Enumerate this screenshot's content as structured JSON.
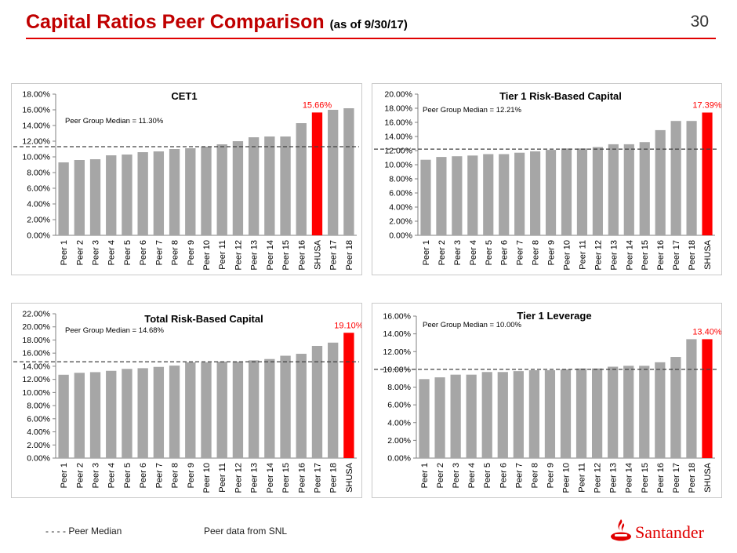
{
  "header": {
    "title": "Capital Ratios Peer Comparison",
    "subtitle": "(as of 9/30/17)",
    "page_number": "30"
  },
  "footer": {
    "legend_text": "- - - - Peer Median",
    "source": "Peer data from SNL",
    "logo_text": "Santander"
  },
  "colors": {
    "peer_bar": "#a6a6a6",
    "highlight_bar": "#ff0000",
    "highlight_label": "#ff0000",
    "title_red": "#c00000",
    "median_line": "#404040"
  },
  "chart_data": [
    {
      "type": "bar",
      "title": "CET1",
      "median_label": "Peer Group Median = 11.30%",
      "median": 11.3,
      "highlight_category": "SHUSA",
      "highlight_label": "15.66%",
      "ylim": [
        0,
        18
      ],
      "ystep": 2,
      "categories": [
        "Peer 1",
        "Peer 2",
        "Peer 3",
        "Peer 4",
        "Peer 5",
        "Peer 6",
        "Peer 7",
        "Peer 8",
        "Peer 9",
        "Peer 10",
        "Peer 11",
        "Peer 12",
        "Peer 13",
        "Peer 14",
        "Peer 15",
        "Peer 16",
        "SHUSA",
        "Peer 17",
        "Peer 18"
      ],
      "values": [
        9.3,
        9.6,
        9.7,
        10.2,
        10.3,
        10.6,
        10.7,
        11.0,
        11.1,
        11.3,
        11.6,
        12.0,
        12.5,
        12.6,
        12.6,
        14.3,
        15.66,
        16.0,
        16.2
      ]
    },
    {
      "type": "bar",
      "title": "Tier 1 Risk-Based Capital",
      "median_label": "Peer Group Median = 12.21%",
      "median": 12.21,
      "highlight_category": "SHUSA",
      "highlight_label": "17.39%",
      "ylim": [
        0,
        20
      ],
      "ystep": 2,
      "categories": [
        "Peer 1",
        "Peer 2",
        "Peer 3",
        "Peer 4",
        "Peer 5",
        "Peer 6",
        "Peer 7",
        "Peer 8",
        "Peer 9",
        "Peer 10",
        "Peer 11",
        "Peer 12",
        "Peer 13",
        "Peer 14",
        "Peer 15",
        "Peer 16",
        "Peer 17",
        "Peer 18",
        "SHUSA"
      ],
      "values": [
        10.7,
        11.1,
        11.2,
        11.3,
        11.5,
        11.5,
        11.7,
        11.9,
        12.1,
        12.3,
        12.3,
        12.5,
        12.9,
        12.9,
        13.2,
        14.9,
        16.2,
        16.2,
        17.39
      ]
    },
    {
      "type": "bar",
      "title": "Total Risk-Based Capital",
      "median_label": "Peer Group Median = 14.68%",
      "median": 14.68,
      "highlight_category": "SHUSA",
      "highlight_label": "19.10%",
      "ylim": [
        0,
        22
      ],
      "ystep": 2,
      "categories": [
        "Peer 1",
        "Peer 2",
        "Peer 3",
        "Peer 4",
        "Peer 5",
        "Peer 6",
        "Peer 7",
        "Peer 8",
        "Peer 9",
        "Peer 10",
        "Peer 11",
        "Peer 12",
        "Peer 13",
        "Peer 14",
        "Peer 15",
        "Peer 16",
        "Peer 17",
        "Peer 18",
        "SHUSA"
      ],
      "values": [
        12.7,
        13.0,
        13.1,
        13.3,
        13.6,
        13.7,
        13.9,
        14.1,
        14.6,
        14.6,
        14.7,
        14.7,
        14.9,
        15.1,
        15.6,
        15.9,
        17.1,
        17.6,
        19.1
      ]
    },
    {
      "type": "bar",
      "title": "Tier 1 Leverage",
      "median_label": "Peer Group Median = 10.00%",
      "median": 10.0,
      "highlight_category": "SHUSA",
      "highlight_label": "13.40%",
      "ylim": [
        0,
        16
      ],
      "ystep": 2,
      "categories": [
        "Peer 1",
        "Peer 2",
        "Peer 3",
        "Peer 4",
        "Peer 5",
        "Peer 6",
        "Peer 7",
        "Peer 8",
        "Peer 9",
        "Peer 10",
        "Peer 11",
        "Peer 12",
        "Peer 13",
        "Peer 14",
        "Peer 15",
        "Peer 16",
        "Peer 17",
        "Peer 18",
        "SHUSA"
      ],
      "values": [
        8.9,
        9.1,
        9.4,
        9.4,
        9.7,
        9.7,
        9.8,
        9.9,
        9.9,
        10.0,
        10.1,
        10.1,
        10.3,
        10.4,
        10.4,
        10.8,
        11.4,
        13.4,
        13.4
      ]
    }
  ]
}
